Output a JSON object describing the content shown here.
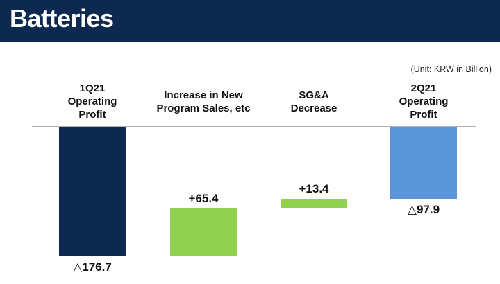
{
  "header": {
    "title": "Batteries"
  },
  "unit_note": "(Unit: KRW in Billion)",
  "colors": {
    "header_bg": "#0e2950",
    "start_bar": "#0e2950",
    "delta_bar": "#92d050",
    "end_bar": "#5b95d9"
  },
  "chart_data": {
    "type": "bar",
    "subtype": "waterfall",
    "categories": [
      "1Q21\nOperating\nProfit",
      "Increase in New\nProgram Sales, etc",
      "SG&A\nDecrease",
      "2Q21\nOperating\nProfit"
    ],
    "values": [
      -176.7,
      65.4,
      13.4,
      -97.9
    ],
    "data_labels": [
      "△176.7",
      "+65.4",
      "+13.4",
      "△97.9"
    ],
    "bar_kinds": [
      "total",
      "delta",
      "delta",
      "total"
    ],
    "ylim": [
      -180,
      0
    ],
    "grid": false,
    "legend": "none"
  }
}
